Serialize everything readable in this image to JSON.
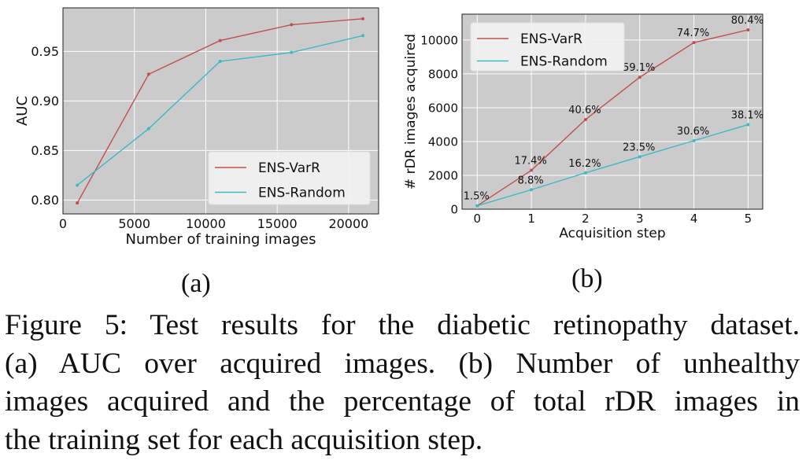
{
  "chart_data": [
    {
      "type": "line",
      "panel_label": "(a)",
      "title": "",
      "xlabel": "Number of training images",
      "ylabel": "AUC",
      "xlim": [
        0,
        22100
      ],
      "ylim": [
        0.786,
        0.994
      ],
      "xticks": [
        0,
        5000,
        10000,
        15000,
        20000
      ],
      "xtick_labels": [
        "0",
        "5000",
        "10000",
        "15000",
        "20000"
      ],
      "yticks": [
        0.8,
        0.85,
        0.9,
        0.95
      ],
      "ytick_labels": [
        "0.80",
        "0.85",
        "0.90",
        "0.95"
      ],
      "grid": true,
      "legend_position": "bottom-right",
      "x": [
        1000,
        6000,
        11000,
        16000,
        21000
      ],
      "series": [
        {
          "name": "ENS-VarR",
          "color": "#c0504d",
          "values": [
            0.797,
            0.927,
            0.961,
            0.977,
            0.983
          ]
        },
        {
          "name": "ENS-Random",
          "color": "#3cb9c4",
          "values": [
            0.815,
            0.872,
            0.94,
            0.949,
            0.966
          ]
        }
      ]
    },
    {
      "type": "line",
      "panel_label": "(b)",
      "title": "",
      "xlabel": "Acquisition step",
      "ylabel": "# rDR images acquired",
      "xlim": [
        -0.28,
        5.27
      ],
      "ylim": [
        0,
        11530
      ],
      "xticks": [
        0,
        1,
        2,
        3,
        4,
        5
      ],
      "xtick_labels": [
        "0",
        "1",
        "2",
        "3",
        "4",
        "5"
      ],
      "yticks": [
        0,
        2000,
        4000,
        6000,
        8000,
        10000
      ],
      "ytick_labels": [
        "0",
        "2000",
        "4000",
        "6000",
        "8000",
        "10000"
      ],
      "grid": true,
      "legend_position": "top-left",
      "x": [
        0,
        1,
        2,
        3,
        4,
        5
      ],
      "series": [
        {
          "name": "ENS-VarR",
          "color": "#c0504d",
          "values": [
            200,
            2300,
            5300,
            7800,
            9850,
            10600
          ],
          "annotations": [
            "1.5%",
            "17.4%",
            "40.6%",
            "59.1%",
            "74.7%",
            "80.4%"
          ]
        },
        {
          "name": "ENS-Random",
          "color": "#3cb9c4",
          "values": [
            200,
            1150,
            2150,
            3100,
            4050,
            5000
          ],
          "annotations": [
            null,
            "8.8%",
            "16.2%",
            "23.5%",
            "30.6%",
            "38.1%"
          ]
        }
      ]
    }
  ],
  "caption": {
    "lines": [
      "Figure 5: Test results for the diabetic retinopathy dataset.",
      "(a) AUC over acquired images. (b) Number of unhealthy",
      "images acquired and the percentage of total rDR images in",
      "the training set for each acquisition step."
    ]
  }
}
